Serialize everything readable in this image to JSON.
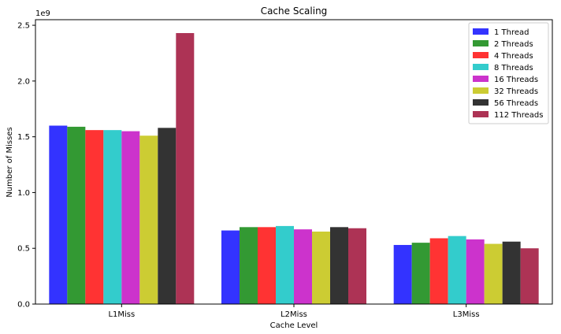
{
  "chart_data": {
    "type": "bar",
    "title": "Cache Scaling",
    "xlabel": "Cache Level",
    "ylabel": "Number of Misses",
    "y_scale_label": "1e9",
    "ylim": [
      0,
      2.55
    ],
    "yticks": [
      "0.0",
      "0.5",
      "1.0",
      "1.5",
      "2.0",
      "2.5"
    ],
    "categories": [
      "L1Miss",
      "L2Miss",
      "L3Miss"
    ],
    "legend_position": "top-right",
    "series": [
      {
        "name": "1 Thread",
        "color": "#3333ff",
        "values": [
          1.6,
          0.66,
          0.53
        ]
      },
      {
        "name": "2 Threads",
        "color": "#339933",
        "values": [
          1.59,
          0.69,
          0.55
        ]
      },
      {
        "name": "4 Threads",
        "color": "#ff3333",
        "values": [
          1.56,
          0.69,
          0.59
        ]
      },
      {
        "name": "8 Threads",
        "color": "#33cccc",
        "values": [
          1.56,
          0.7,
          0.61
        ]
      },
      {
        "name": "16 Threads",
        "color": "#cc33cc",
        "values": [
          1.55,
          0.67,
          0.58
        ]
      },
      {
        "name": "32 Threads",
        "color": "#cccc33",
        "values": [
          1.51,
          0.65,
          0.54
        ]
      },
      {
        "name": "56 Threads",
        "color": "#333333",
        "values": [
          1.58,
          0.69,
          0.56
        ]
      },
      {
        "name": "112 Threads",
        "color": "#ad3355",
        "values": [
          2.43,
          0.68,
          0.5
        ]
      }
    ]
  }
}
